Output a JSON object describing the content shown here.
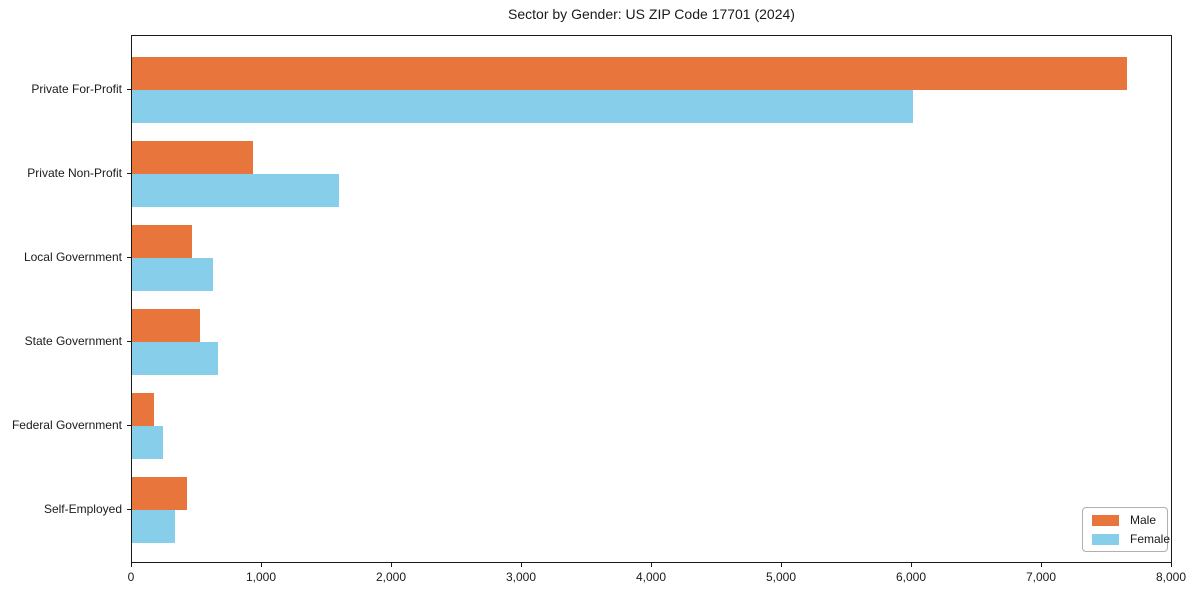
{
  "chart_data": {
    "type": "bar",
    "orientation": "horizontal",
    "title": "Sector by Gender: US ZIP Code 17701 (2024)",
    "categories": [
      "Private For-Profit",
      "Private Non-Profit",
      "Local Government",
      "State Government",
      "Federal Government",
      "Self-Employed"
    ],
    "series": [
      {
        "name": "Male",
        "color": "#e8763c",
        "values": [
          7660,
          930,
          460,
          520,
          170,
          420
        ]
      },
      {
        "name": "Female",
        "color": "#87ceeb",
        "values": [
          6010,
          1590,
          620,
          660,
          240,
          330
        ]
      }
    ],
    "xlabel": "",
    "ylabel": "",
    "xlim": [
      0,
      8000
    ],
    "x_ticks": [
      {
        "value": 0,
        "label": "0"
      },
      {
        "value": 1000,
        "label": "1,000"
      },
      {
        "value": 2000,
        "label": "2,000"
      },
      {
        "value": 3000,
        "label": "3,000"
      },
      {
        "value": 4000,
        "label": "4,000"
      },
      {
        "value": 5000,
        "label": "5,000"
      },
      {
        "value": 6000,
        "label": "6,000"
      },
      {
        "value": 7000,
        "label": "7,000"
      },
      {
        "value": 8000,
        "label": "8,000"
      }
    ],
    "grid": false,
    "legend": {
      "position": "lower right",
      "entries": [
        "Male",
        "Female"
      ]
    },
    "colors": {
      "background": "#ffffff",
      "spine": "#1a1a1a",
      "legend_border": "#b0b0b0"
    }
  }
}
